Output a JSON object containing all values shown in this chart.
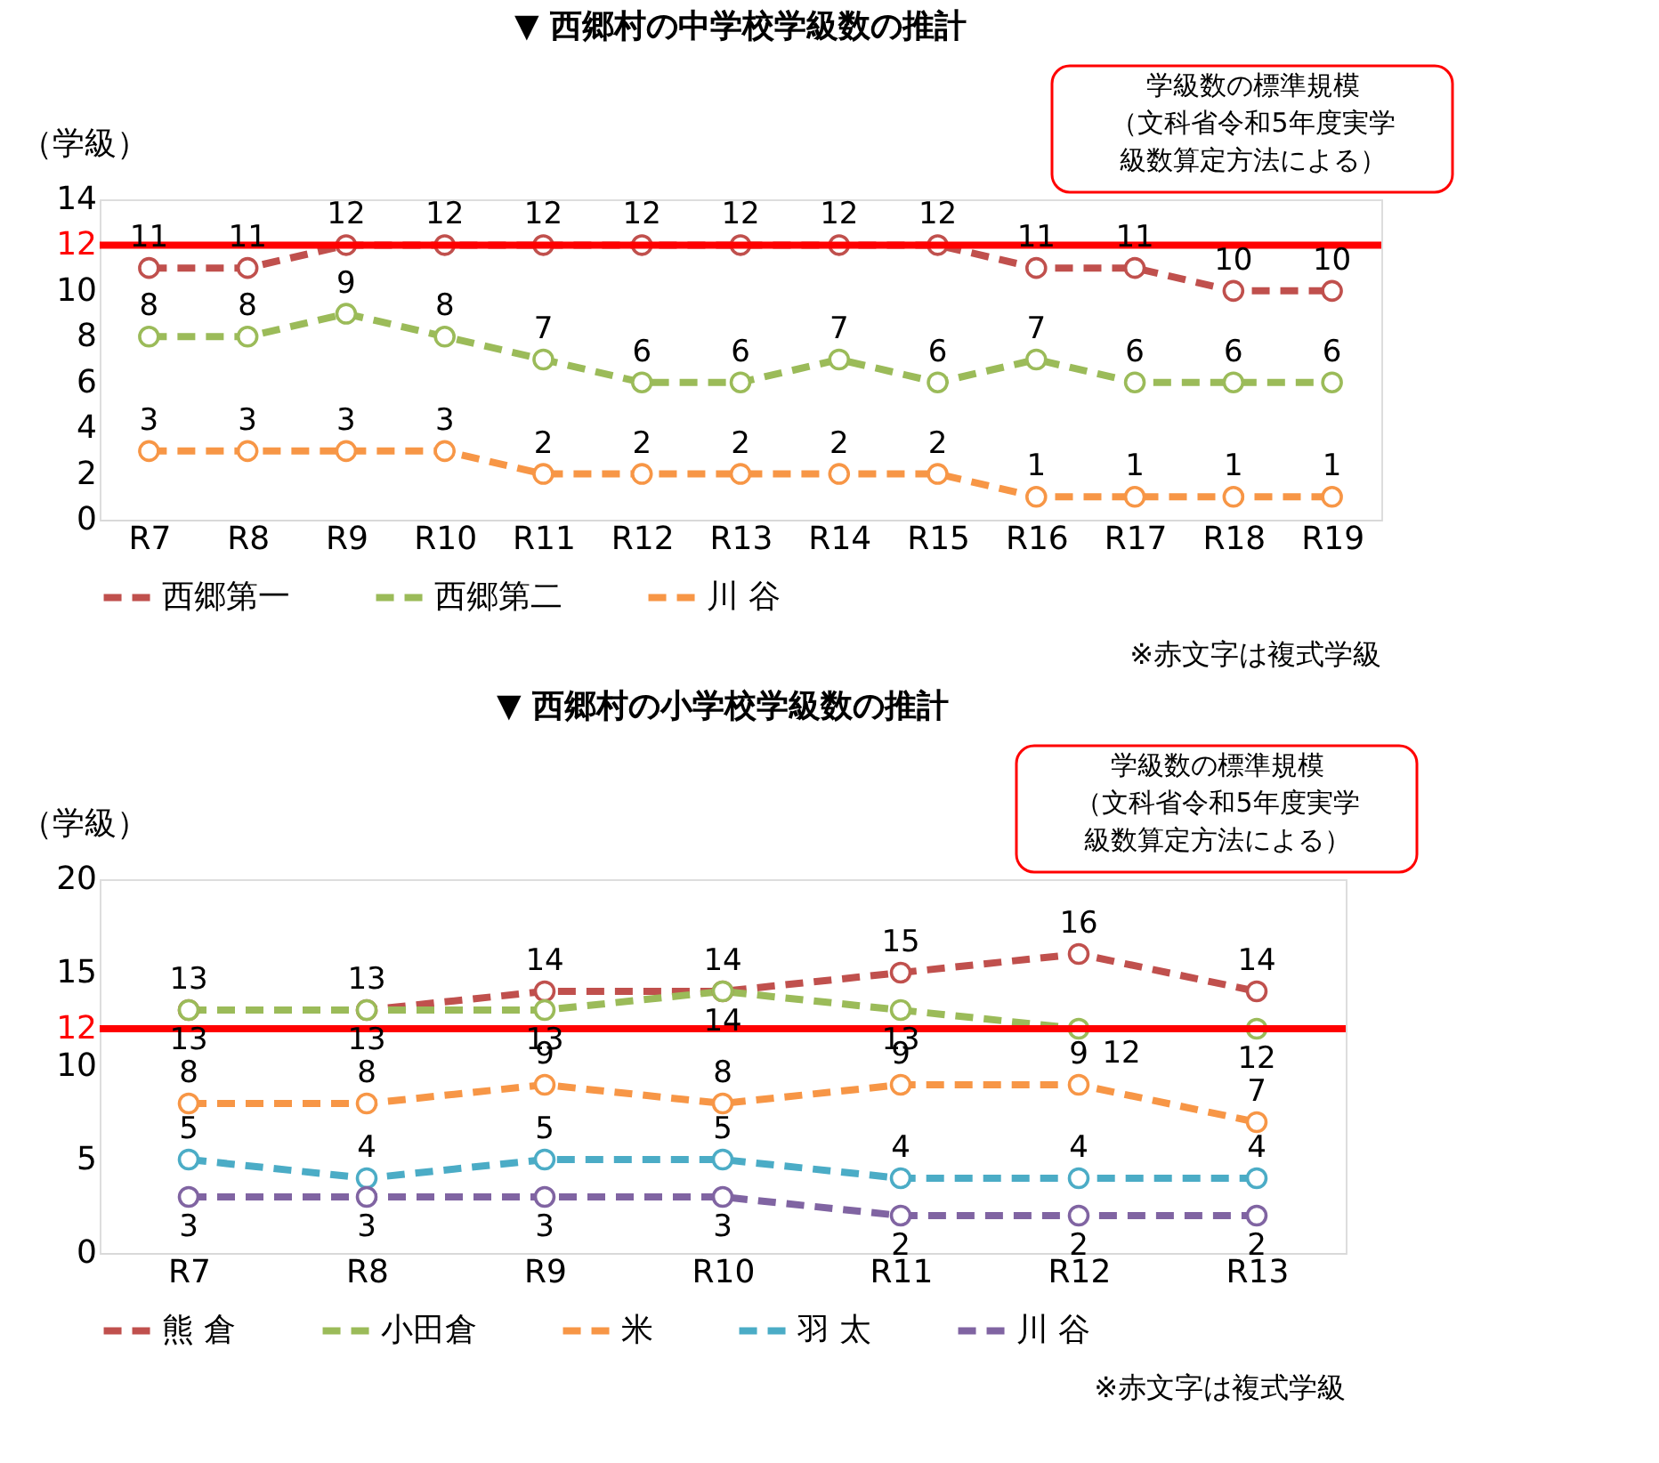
{
  "chart_data": [
    {
      "type": "line",
      "title": "▼ 西郷村の中学校学級数の推計",
      "ylabel": "（学級）",
      "categories": [
        "R7",
        "R8",
        "R9",
        "R10",
        "R11",
        "R12",
        "R13",
        "R14",
        "R15",
        "R16",
        "R17",
        "R18",
        "R19"
      ],
      "series": [
        {
          "name": "西郷第一",
          "color": "#c0504d",
          "values": [
            11,
            11,
            12,
            12,
            12,
            12,
            12,
            12,
            12,
            11,
            11,
            10,
            10
          ]
        },
        {
          "name": "西郷第二",
          "color": "#9bbb59",
          "values": [
            8,
            8,
            9,
            8,
            7,
            6,
            6,
            7,
            6,
            7,
            6,
            6,
            6
          ]
        },
        {
          "name": "川 谷",
          "color": "#f79646",
          "values": [
            3,
            3,
            3,
            3,
            2,
            2,
            2,
            2,
            2,
            1,
            1,
            1,
            1
          ]
        }
      ],
      "ylim": [
        0,
        14
      ],
      "yticks": [
        0,
        2,
        4,
        6,
        8,
        10,
        12,
        14
      ],
      "grid": false,
      "legend": "bottom",
      "marker": "circle",
      "line_style": "dashed",
      "data_labels": true,
      "ref_lines": [
        {
          "axis": "y",
          "value": 12,
          "color": "#ff0000"
        }
      ],
      "annotations": [
        "学級数の標準規模",
        "（文科省令和5年度実学",
        "級数算定方法による）",
        "※赤文字は複式学級"
      ]
    },
    {
      "type": "line",
      "title": "▼ 西郷村の小学校学級数の推計",
      "ylabel": "（学級）",
      "categories": [
        "R7",
        "R8",
        "R9",
        "R10",
        "R11",
        "R12",
        "R13"
      ],
      "series": [
        {
          "name": "熊 倉",
          "color": "#c0504d",
          "values": [
            13,
            13,
            14,
            14,
            15,
            16,
            14
          ]
        },
        {
          "name": "小田倉",
          "color": "#9bbb59",
          "values": [
            13,
            13,
            13,
            14,
            13,
            12,
            12
          ]
        },
        {
          "name": "米",
          "color": "#f79646",
          "values": [
            8,
            8,
            9,
            8,
            9,
            9,
            7
          ]
        },
        {
          "name": "羽 太",
          "color": "#4bacc6",
          "values": [
            5,
            4,
            5,
            5,
            4,
            4,
            4
          ]
        },
        {
          "name": "川 谷",
          "color": "#8064a2",
          "values": [
            3,
            3,
            3,
            3,
            2,
            2,
            2
          ]
        }
      ],
      "ylim": [
        0,
        20
      ],
      "yticks": [
        0,
        5,
        10,
        12,
        15,
        20
      ],
      "grid": false,
      "legend": "bottom",
      "marker": "circle",
      "line_style": "dashed",
      "data_labels": true,
      "ref_lines": [
        {
          "axis": "y",
          "value": 12,
          "color": "#ff0000"
        }
      ],
      "annotations": [
        "学級数の標準規模",
        "（文科省令和5年度実学",
        "級数算定方法による）",
        "※赤文字は複式学級"
      ]
    }
  ]
}
